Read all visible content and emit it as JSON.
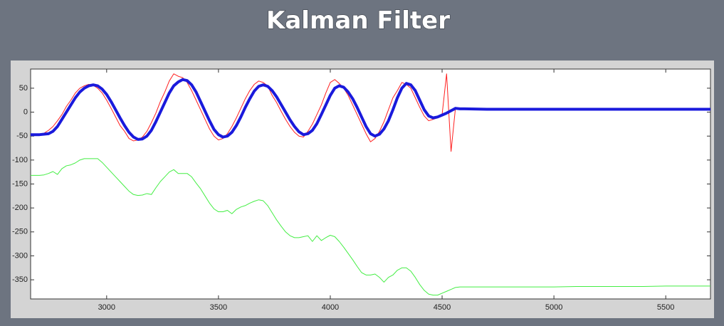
{
  "chart_data": {
    "type": "line",
    "title": "Kalman Filter",
    "x": [
      2660,
      2680,
      2700,
      2720,
      2740,
      2760,
      2780,
      2800,
      2820,
      2840,
      2860,
      2880,
      2900,
      2920,
      2940,
      2960,
      2980,
      3000,
      3020,
      3040,
      3060,
      3080,
      3100,
      3120,
      3140,
      3160,
      3180,
      3200,
      3220,
      3240,
      3260,
      3280,
      3300,
      3320,
      3340,
      3360,
      3380,
      3400,
      3420,
      3440,
      3460,
      3480,
      3500,
      3520,
      3540,
      3560,
      3580,
      3600,
      3620,
      3640,
      3660,
      3680,
      3700,
      3720,
      3740,
      3760,
      3780,
      3800,
      3820,
      3840,
      3860,
      3880,
      3900,
      3920,
      3940,
      3960,
      3980,
      4000,
      4020,
      4040,
      4060,
      4080,
      4100,
      4120,
      4140,
      4160,
      4180,
      4200,
      4220,
      4240,
      4260,
      4280,
      4300,
      4320,
      4340,
      4360,
      4380,
      4400,
      4420,
      4440,
      4460,
      4480,
      4500,
      4520,
      4540,
      4560,
      4580,
      4600,
      4700,
      4800,
      4900,
      5000,
      5100,
      5200,
      5300,
      5400,
      5500,
      5600,
      5700
    ],
    "series": [
      {
        "color": "#ff2020",
        "values": [
          -47,
          -46,
          -48,
          -44,
          -38,
          -30,
          -18,
          -5,
          12,
          25,
          40,
          50,
          55,
          58,
          56,
          50,
          40,
          25,
          8,
          -10,
          -28,
          -40,
          -55,
          -60,
          -58,
          -52,
          -40,
          -22,
          -2,
          22,
          42,
          65,
          80,
          75,
          72,
          62,
          45,
          25,
          5,
          -15,
          -35,
          -50,
          -58,
          -55,
          -45,
          -30,
          -12,
          8,
          28,
          45,
          58,
          65,
          62,
          55,
          35,
          20,
          2,
          -15,
          -30,
          -42,
          -50,
          -52,
          -40,
          -25,
          -5,
          15,
          40,
          62,
          68,
          60,
          50,
          35,
          15,
          -5,
          -25,
          -45,
          -62,
          -55,
          -40,
          -20,
          5,
          30,
          45,
          62,
          58,
          50,
          30,
          10,
          -8,
          -18,
          -15,
          -12,
          -5,
          80,
          -82,
          10,
          7,
          7,
          6,
          6,
          6,
          6,
          6,
          6,
          6,
          6,
          6,
          6,
          6
        ]
      },
      {
        "color": "#1a1adc",
        "values": [
          -47,
          -47,
          -47,
          -46,
          -45,
          -40,
          -30,
          -15,
          0,
          15,
          30,
          42,
          50,
          55,
          57,
          55,
          48,
          37,
          22,
          5,
          -12,
          -28,
          -42,
          -52,
          -57,
          -56,
          -50,
          -38,
          -20,
          0,
          20,
          40,
          55,
          63,
          68,
          66,
          57,
          42,
          22,
          2,
          -18,
          -36,
          -47,
          -52,
          -50,
          -42,
          -28,
          -10,
          10,
          28,
          44,
          54,
          57,
          54,
          45,
          32,
          16,
          0,
          -16,
          -30,
          -41,
          -47,
          -45,
          -38,
          -24,
          -5,
          15,
          35,
          50,
          55,
          52,
          42,
          28,
          10,
          -10,
          -30,
          -45,
          -50,
          -46,
          -35,
          -18,
          5,
          30,
          50,
          60,
          57,
          45,
          25,
          5,
          -8,
          -12,
          -10,
          -6,
          -2,
          3,
          8,
          7,
          7,
          6,
          6,
          6,
          6,
          6,
          6,
          6,
          6,
          6,
          6,
          6
        ]
      },
      {
        "color": "#44ee44",
        "values": [
          -132,
          -132,
          -132,
          -131,
          -128,
          -124,
          -130,
          -118,
          -112,
          -110,
          -106,
          -100,
          -97,
          -97,
          -97,
          -97,
          -105,
          -115,
          -125,
          -135,
          -145,
          -155,
          -165,
          -172,
          -174,
          -173,
          -170,
          -172,
          -158,
          -145,
          -135,
          -125,
          -120,
          -128,
          -128,
          -128,
          -135,
          -148,
          -160,
          -175,
          -190,
          -202,
          -208,
          -208,
          -205,
          -212,
          -203,
          -198,
          -195,
          -190,
          -186,
          -183,
          -185,
          -195,
          -210,
          -225,
          -238,
          -250,
          -258,
          -262,
          -262,
          -260,
          -258,
          -270,
          -258,
          -268,
          -262,
          -257,
          -260,
          -270,
          -282,
          -295,
          -308,
          -322,
          -335,
          -340,
          -340,
          -338,
          -345,
          -355,
          -345,
          -340,
          -330,
          -325,
          -325,
          -332,
          -345,
          -360,
          -372,
          -380,
          -382,
          -382,
          -378,
          -374,
          -370,
          -366,
          -365,
          -365,
          -365,
          -365,
          -365,
          -365,
          -364,
          -364,
          -364,
          -364,
          -363,
          -363,
          -363
        ]
      }
    ],
    "line_widths": [
      1,
      4,
      1
    ],
    "xlim": [
      2660,
      5700
    ],
    "xticks": [
      3000,
      3500,
      4000,
      4500,
      5000,
      5500
    ],
    "ylim": [
      -390,
      90
    ],
    "yticks": [
      50,
      0,
      -50,
      -100,
      -150,
      -200,
      -250,
      -300,
      -350
    ],
    "grid": false
  }
}
